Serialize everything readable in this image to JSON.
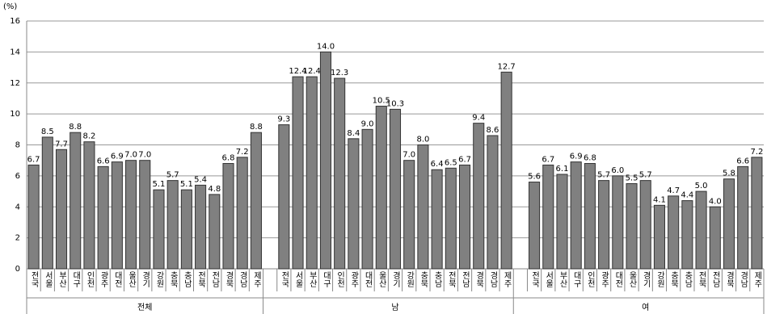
{
  "chart_data": {
    "type": "bar",
    "unit_label": "(%)",
    "categories": [
      "전국",
      "서울",
      "부산",
      "대구",
      "인천",
      "광주",
      "대전",
      "울산",
      "경기",
      "강원",
      "충북",
      "충남",
      "전북",
      "전남",
      "경북",
      "경남",
      "제주"
    ],
    "series": [
      {
        "name": "전체",
        "color": "#808080",
        "values": [
          6.7,
          8.5,
          7.7,
          8.8,
          8.2,
          6.6,
          6.9,
          7,
          7,
          5.1,
          5.7,
          5.1,
          5.4,
          4.8,
          6.8,
          7.2,
          8.8
        ],
        "value_labels": [
          "6.7",
          "8.5",
          "7.7",
          "8.8",
          "8.2",
          "6.6",
          "6.9",
          "7.0",
          "7.0",
          "5.1",
          "5.7",
          "5.1",
          "5.4",
          "4.8",
          "6.8",
          "7.2",
          "8.8"
        ]
      },
      {
        "name": "남",
        "color": "#808080",
        "values": [
          9.3,
          12.4,
          12.4,
          14,
          12.3,
          8.4,
          9,
          10.5,
          10.3,
          7,
          8,
          6.4,
          6.5,
          6.7,
          9.4,
          8.6,
          12.7
        ],
        "value_labels": [
          "9.3",
          "12.4",
          "12.4",
          "14.0",
          "12.3",
          "8.4",
          "9.0",
          "10.5",
          "10.3",
          "7.0",
          "8.0",
          "6.4",
          "6.5",
          "6.7",
          "9.4",
          "8.6",
          "12.7"
        ]
      },
      {
        "name": "여",
        "color": "#808080",
        "values": [
          5.6,
          6.7,
          6.1,
          6.9,
          6.8,
          5.7,
          6,
          5.5,
          5.7,
          4.1,
          4.7,
          4.4,
          5,
          4,
          5.8,
          6.6,
          7.2
        ],
        "value_labels": [
          "5.6",
          "6.7",
          "6.1",
          "6.9",
          "6.8",
          "5.7",
          "6.0",
          "5.5",
          "5.7",
          "4.1",
          "4.7",
          "4.4",
          "5.0",
          "4.0",
          "5.8",
          "6.6",
          "7.2"
        ]
      }
    ],
    "ylim": [
      0,
      16
    ],
    "yticks": [
      0,
      2,
      4,
      6,
      8,
      10,
      12,
      14,
      16
    ],
    "grid": true
  }
}
